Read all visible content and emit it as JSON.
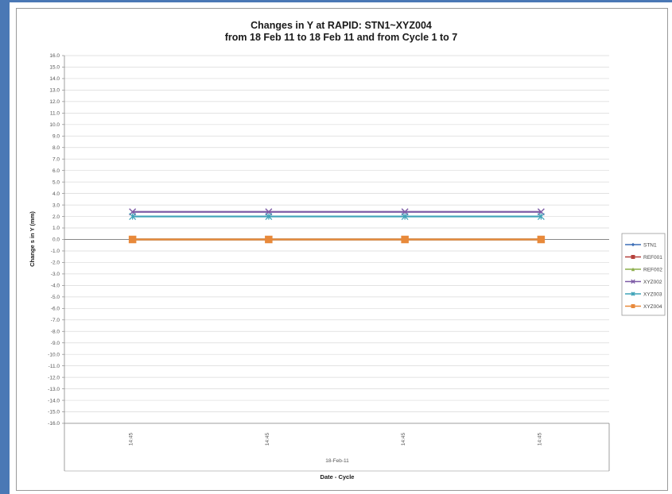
{
  "chart_data": {
    "type": "line",
    "title": "Changes in Y at RAPID: STN1~XYZ004",
    "subtitle": "from 18 Feb 11 to 18 Feb 11 and from Cycle 1 to 7",
    "ylabel": "Change s in Y (mm)",
    "xlabel": "Date - Cycle",
    "x_group_label": "18-Feb-11",
    "categories": [
      "14:45",
      "14:45",
      "14:45",
      "14:45"
    ],
    "ylim": [
      -16.0,
      16.0
    ],
    "y_tick_step": 1.0,
    "grid": true,
    "legend_position": "right",
    "series": [
      {
        "name": "STN1",
        "values": [
          0.0,
          0.0,
          0.0,
          0.0
        ],
        "color": "#3d6fb7",
        "marker": "diamond"
      },
      {
        "name": "REF001",
        "values": [
          0.0,
          0.0,
          0.0,
          0.0
        ],
        "color": "#b5403b",
        "marker": "square"
      },
      {
        "name": "REF002",
        "values": [
          0.0,
          0.0,
          0.0,
          0.0
        ],
        "color": "#8cad4a",
        "marker": "triangle"
      },
      {
        "name": "XYZ002",
        "values": [
          2.4,
          2.4,
          2.4,
          2.4
        ],
        "color": "#7d5ba6",
        "marker": "x"
      },
      {
        "name": "XYZ003",
        "values": [
          2.0,
          2.0,
          2.0,
          2.0
        ],
        "color": "#3fa3b8",
        "marker": "star"
      },
      {
        "name": "XYZ004",
        "values": [
          0.0,
          0.0,
          0.0,
          0.0
        ],
        "color": "#e8893a",
        "marker": "square"
      }
    ]
  }
}
